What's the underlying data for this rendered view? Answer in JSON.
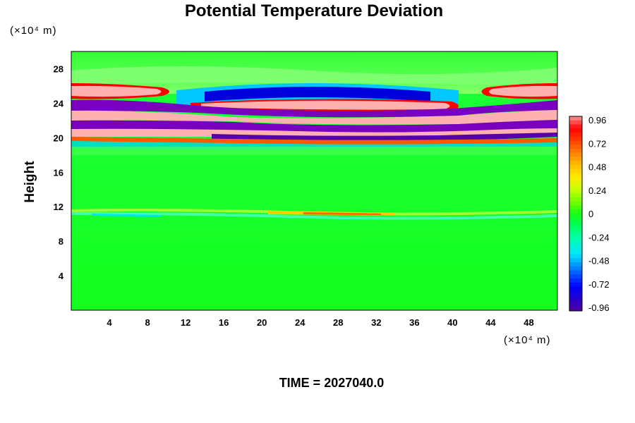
{
  "chart_data": {
    "type": "heatmap",
    "title": "Potential Temperature Deviation",
    "ylabel": "Height",
    "y_unit": "(×10⁴ m)",
    "x_unit": "(×10⁴ m)",
    "time_label": "TIME = 2027040.0",
    "xlim": [
      0,
      51
    ],
    "ylim": [
      0,
      30
    ],
    "x_ticks": [
      4,
      8,
      12,
      16,
      20,
      24,
      28,
      32,
      36,
      40,
      44,
      48
    ],
    "y_ticks": [
      4,
      8,
      12,
      16,
      20,
      24,
      28
    ],
    "x_tick_labels": [
      "4",
      "8",
      "12",
      "16",
      "20",
      "24",
      "28",
      "32",
      "36",
      "40",
      "44",
      "48"
    ],
    "y_tick_labels": [
      "4",
      "8",
      "12",
      "16",
      "20",
      "24",
      "28"
    ],
    "colorbar": {
      "range": [
        -0.96,
        0.96
      ],
      "tick_values": [
        0.96,
        0.72,
        0.48,
        0.24,
        0,
        -0.24,
        -0.48,
        -0.72,
        -0.96
      ],
      "tick_labels": [
        "0.96",
        "0.72",
        "0.48",
        "0.24",
        "0",
        "-0.24",
        "-0.48",
        "-0.72",
        "-0.96"
      ]
    },
    "field_bands": [
      {
        "y_center": 29.0,
        "value": 0.1
      },
      {
        "y_center": 27.0,
        "value": 0.0
      },
      {
        "y_center": 25.5,
        "value": 0.96
      },
      {
        "y_center": 25.0,
        "value": -0.7
      },
      {
        "y_center": 24.2,
        "value": 0.96
      },
      {
        "y_center": 23.2,
        "value": -1.0
      },
      {
        "y_center": 22.2,
        "value": 1.0
      },
      {
        "y_center": 21.3,
        "value": -1.0
      },
      {
        "y_center": 20.5,
        "value": 1.0
      },
      {
        "y_center": 19.8,
        "value": -0.6
      },
      {
        "y_center": 11.0,
        "value": 0.3
      },
      {
        "y_center": 10.5,
        "value": -0.3
      },
      {
        "y_center": 5.0,
        "value": 0.05
      }
    ]
  }
}
